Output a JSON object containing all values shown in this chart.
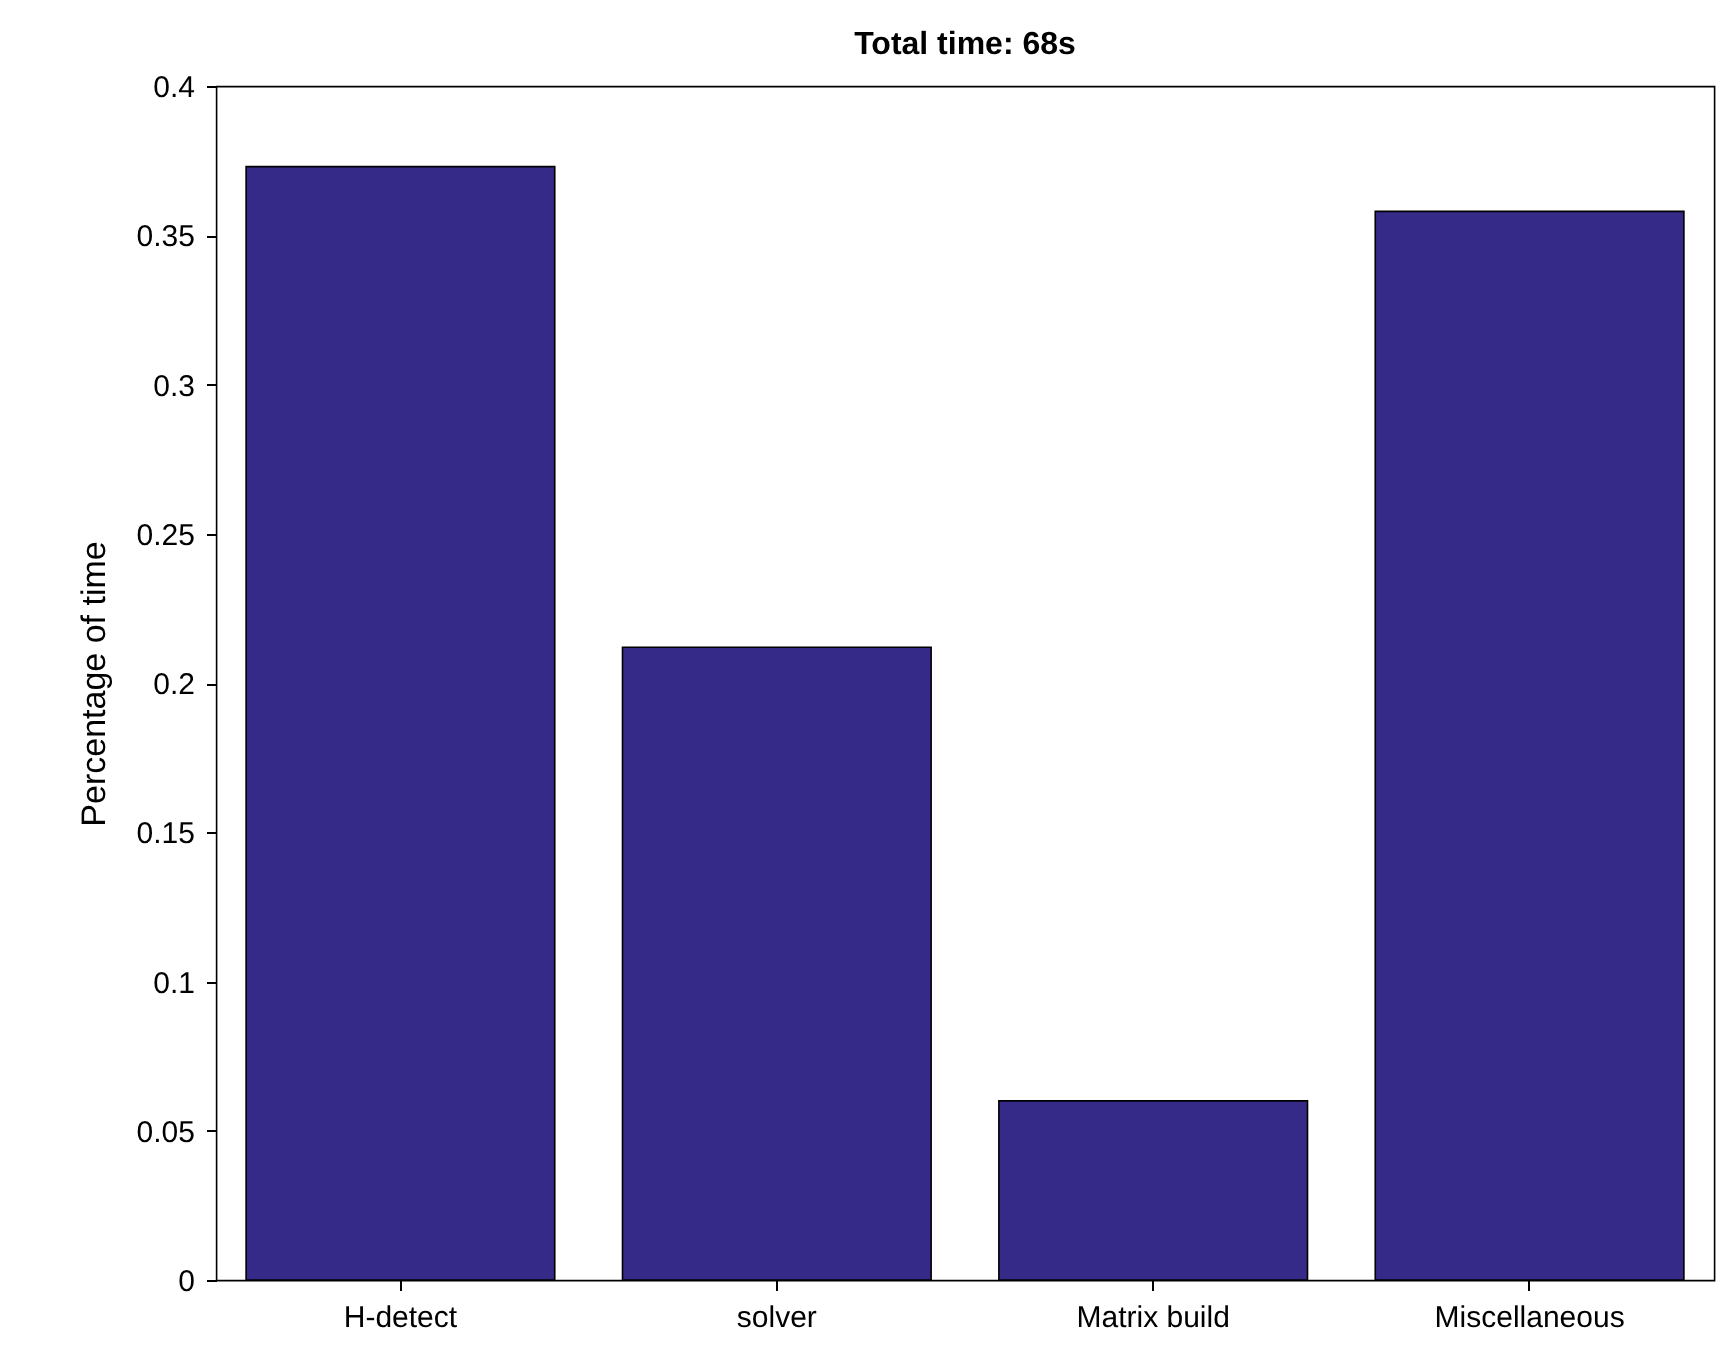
{
  "chart_data": {
    "type": "bar",
    "title": "Total time: 68s",
    "ylabel": "Percentage of time",
    "categories": [
      "H-detect",
      "solver",
      "Matrix build",
      "Miscellaneous"
    ],
    "values": [
      0.373,
      0.212,
      0.06,
      0.358
    ],
    "color": "#352a87",
    "ylim": [
      0,
      0.4
    ],
    "yticks": [
      0,
      0.05,
      0.1,
      0.15,
      0.2,
      0.25,
      0.3,
      0.35,
      0.4
    ],
    "grid": false
  }
}
